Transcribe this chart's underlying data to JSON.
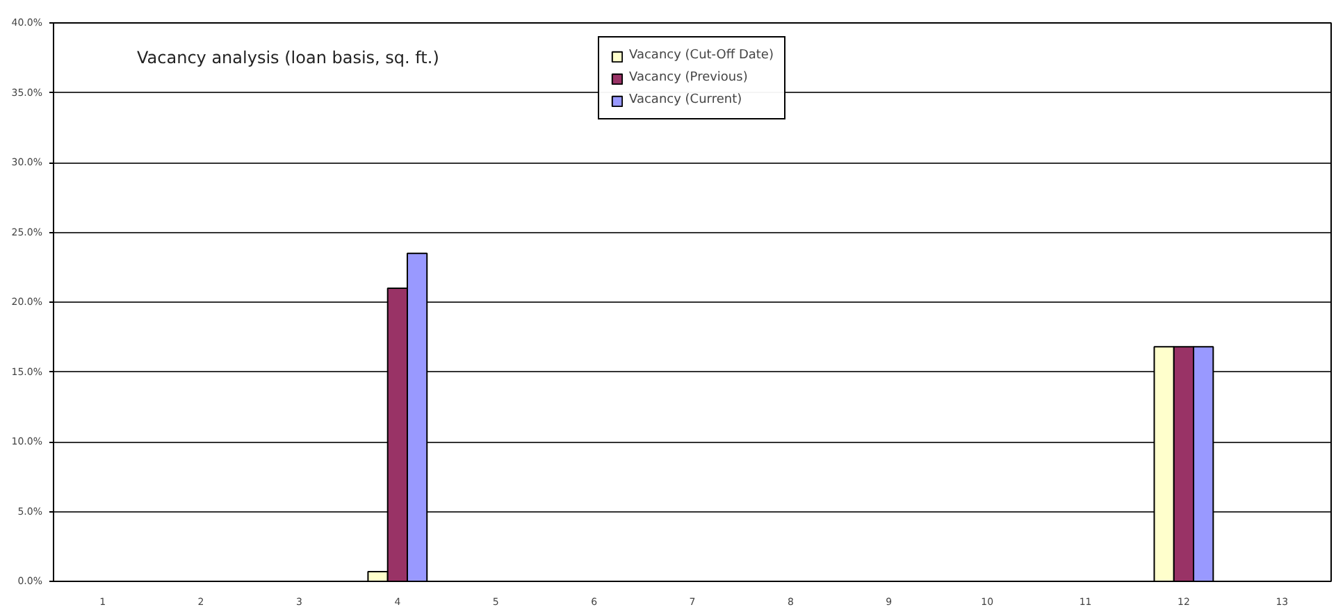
{
  "chart_data": {
    "type": "bar",
    "title": "Vacancy analysis (loan basis, sq. ft.)",
    "categories": [
      "1",
      "2",
      "3",
      "4",
      "5",
      "6",
      "7",
      "8",
      "9",
      "10",
      "11",
      "12",
      "13"
    ],
    "series": [
      {
        "name": "Vacancy (Cut-Off Date)",
        "color": "#ffffcc",
        "values": [
          null,
          null,
          null,
          0.7,
          null,
          null,
          null,
          null,
          null,
          null,
          null,
          16.8,
          null
        ]
      },
      {
        "name": "Vacancy (Previous)",
        "color": "#993366",
        "values": [
          null,
          null,
          null,
          21.0,
          null,
          null,
          null,
          null,
          null,
          null,
          null,
          16.8,
          null
        ]
      },
      {
        "name": "Vacancy (Current)",
        "color": "#9999ff",
        "values": [
          null,
          null,
          null,
          23.5,
          null,
          null,
          null,
          null,
          null,
          null,
          null,
          16.8,
          null
        ]
      }
    ],
    "ylim": [
      0,
      40
    ],
    "yticks": [
      {
        "value": 0,
        "label": "0.0%"
      },
      {
        "value": 5,
        "label": "5.0%"
      },
      {
        "value": 10,
        "label": "10.0%"
      },
      {
        "value": 15,
        "label": "15.0%"
      },
      {
        "value": 20,
        "label": "20.0%"
      },
      {
        "value": 25,
        "label": "25.0%"
      },
      {
        "value": 30,
        "label": "30.0%"
      },
      {
        "value": 35,
        "label": "35.0%"
      },
      {
        "value": 40,
        "label": "40.0%"
      }
    ],
    "grid": "y",
    "legend": "top"
  }
}
